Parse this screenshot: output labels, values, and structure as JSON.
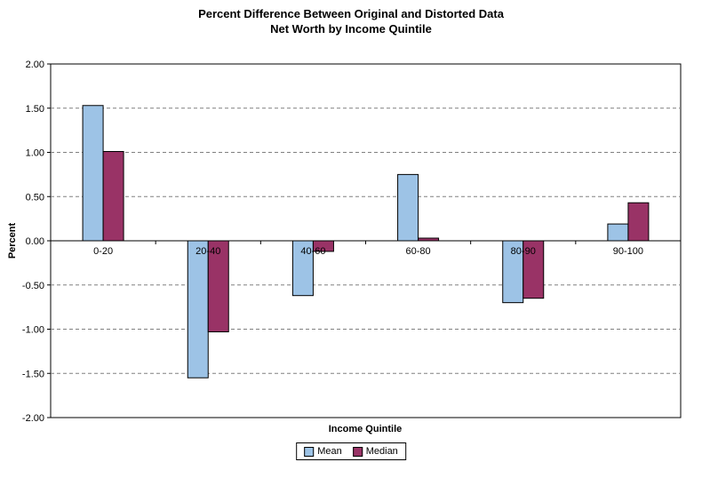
{
  "chart_data": {
    "type": "bar",
    "title_lines": [
      "Percent Difference Between Original and Distorted Data",
      "Net Worth by Income Quintile"
    ],
    "xlabel": "Income Quintile",
    "ylabel": "Percent",
    "categories": [
      "0-20",
      "20-40",
      "40-60",
      "60-80",
      "80-90",
      "90-100"
    ],
    "series": [
      {
        "name": "Mean",
        "color": "#9dc3e6",
        "values": [
          1.53,
          -1.55,
          -0.62,
          0.75,
          -0.7,
          0.19
        ]
      },
      {
        "name": "Median",
        "color": "#993366",
        "values": [
          1.01,
          -1.03,
          -0.12,
          0.03,
          -0.65,
          0.43
        ]
      }
    ],
    "ylim": [
      -2.0,
      2.0
    ],
    "ytick_step": 0.5,
    "ytick_labels": [
      "2.00",
      "1.50",
      "1.00",
      "0.50",
      "0.00",
      "-0.50",
      "-1.00",
      "-1.50",
      "-2.00"
    ],
    "grid": true,
    "gridline_color": "#808080",
    "bar_border_color": "#000000",
    "legend_position": "bottom"
  }
}
